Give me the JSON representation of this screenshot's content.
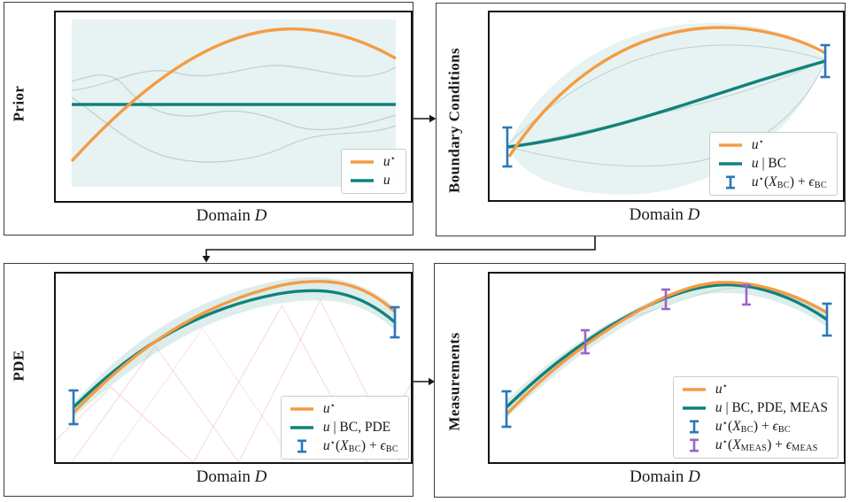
{
  "colors": {
    "u_star": "#F49C42",
    "posterior_mean": "#10827B",
    "uncertainty_band": "rgba(16,130,123,0.13)",
    "bc_errorbar": "#2B77B7",
    "meas_errorbar": "#9966C7",
    "fem_basis": "rgba(238,140,140,0.28)",
    "panel_border": "#3c3c3c",
    "plot_border": "#141414"
  },
  "flow_arrows": [
    {
      "from": "Prior",
      "to": "Boundary Conditions"
    },
    {
      "from": "Boundary Conditions",
      "to": "PDE"
    },
    {
      "from": "PDE",
      "to": "Measurements"
    }
  ],
  "panels": [
    {
      "id": "prior",
      "side_label": "Prior",
      "xlabel": [
        {
          "t": "Domain ",
          "rm": true
        },
        {
          "t": "D",
          "it": true
        }
      ],
      "legend": [
        {
          "marker": "line",
          "color": "#F49C42",
          "label": [
            {
              "t": "u",
              "it": true
            },
            {
              "t": "⋆",
              "sup": true
            }
          ]
        },
        {
          "marker": "line",
          "color": "#10827B",
          "label": [
            {
              "t": "u",
              "it": true
            }
          ]
        }
      ]
    },
    {
      "id": "boundary-conditions",
      "side_label": "Boundary Conditions",
      "xlabel": [
        {
          "t": "Domain ",
          "rm": true
        },
        {
          "t": "D",
          "it": true
        }
      ],
      "legend": [
        {
          "marker": "line",
          "color": "#F49C42",
          "label": [
            {
              "t": "u",
              "it": true
            },
            {
              "t": "⋆",
              "sup": true
            }
          ]
        },
        {
          "marker": "line",
          "color": "#10827B",
          "label": [
            {
              "t": "u",
              "it": true
            },
            {
              "t": " | BC",
              "rm": true
            }
          ]
        },
        {
          "marker": "errorbar",
          "color": "#2B77B7",
          "label": [
            {
              "t": "u",
              "it": true
            },
            {
              "t": "⋆",
              "sup": true
            },
            {
              "t": "(",
              "rm": true
            },
            {
              "t": "X",
              "it": true
            },
            {
              "t": "BC",
              "sub": true
            },
            {
              "t": ")",
              "rm": true
            },
            {
              "t": " + ",
              "rm": true
            },
            {
              "t": "ϵ",
              "it": true
            },
            {
              "t": "BC",
              "sub": true
            }
          ]
        }
      ]
    },
    {
      "id": "pde",
      "side_label": "PDE",
      "xlabel": [
        {
          "t": "Domain ",
          "rm": true
        },
        {
          "t": "D",
          "it": true
        }
      ],
      "legend": [
        {
          "marker": "line",
          "color": "#F49C42",
          "label": [
            {
              "t": "u",
              "it": true
            },
            {
              "t": "⋆",
              "sup": true
            }
          ]
        },
        {
          "marker": "line",
          "color": "#10827B",
          "label": [
            {
              "t": "u",
              "it": true
            },
            {
              "t": " | BC, PDE",
              "rm": true
            }
          ]
        },
        {
          "marker": "errorbar",
          "color": "#2B77B7",
          "label": [
            {
              "t": "u",
              "it": true
            },
            {
              "t": "⋆",
              "sup": true
            },
            {
              "t": "(",
              "rm": true
            },
            {
              "t": "X",
              "it": true
            },
            {
              "t": "BC",
              "sub": true
            },
            {
              "t": ")",
              "rm": true
            },
            {
              "t": " + ",
              "rm": true
            },
            {
              "t": "ϵ",
              "it": true
            },
            {
              "t": "BC",
              "sub": true
            }
          ]
        }
      ]
    },
    {
      "id": "measurements",
      "side_label": "Measurements",
      "xlabel": [
        {
          "t": "Domain ",
          "rm": true
        },
        {
          "t": "D",
          "it": true
        }
      ],
      "legend": [
        {
          "marker": "line",
          "color": "#F49C42",
          "label": [
            {
              "t": "u",
              "it": true
            },
            {
              "t": "⋆",
              "sup": true
            }
          ]
        },
        {
          "marker": "line",
          "color": "#10827B",
          "label": [
            {
              "t": "u",
              "it": true
            },
            {
              "t": " | BC, PDE, MEAS",
              "rm": true
            }
          ]
        },
        {
          "marker": "errorbar",
          "color": "#2B77B7",
          "label": [
            {
              "t": "u",
              "it": true
            },
            {
              "t": "⋆",
              "sup": true
            },
            {
              "t": "(",
              "rm": true
            },
            {
              "t": "X",
              "it": true
            },
            {
              "t": "BC",
              "sub": true
            },
            {
              "t": ")",
              "rm": true
            },
            {
              "t": " + ",
              "rm": true
            },
            {
              "t": "ϵ",
              "it": true
            },
            {
              "t": "BC",
              "sub": true
            }
          ]
        },
        {
          "marker": "errorbar",
          "color": "#9966C7",
          "label": [
            {
              "t": "u",
              "it": true
            },
            {
              "t": "⋆",
              "sup": true
            },
            {
              "t": "(",
              "rm": true
            },
            {
              "t": "X",
              "it": true
            },
            {
              "t": "MEAS",
              "sub": true
            },
            {
              "t": ")",
              "rm": true
            },
            {
              "t": " + ",
              "rm": true
            },
            {
              "t": "ϵ",
              "it": true
            },
            {
              "t": "MEAS",
              "sub": true
            }
          ]
        }
      ]
    }
  ],
  "chart_data": [
    {
      "type": "line",
      "title": "Prior",
      "xlabel": "Domain D",
      "ylabel": "",
      "axis_ticks": false,
      "grid": false,
      "legend_position": "lower right",
      "x": [
        0,
        0.125,
        0.25,
        0.375,
        0.5,
        0.625,
        0.75,
        0.875,
        1
      ],
      "series": [
        {
          "name": "u⋆",
          "color": "#F49C42",
          "values": [
            0.18,
            0.37,
            0.55,
            0.72,
            0.85,
            0.93,
            0.95,
            0.91,
            0.8
          ]
        },
        {
          "name": "u",
          "color": "#10827B",
          "values": [
            0.5,
            0.5,
            0.5,
            0.5,
            0.5,
            0.5,
            0.5,
            0.5,
            0.5
          ]
        }
      ],
      "band": {
        "label": "prior uncertainty",
        "lower": 0.06,
        "upper": 0.95,
        "style": "uniform rectangle"
      },
      "sample_paths": 3
    },
    {
      "type": "line",
      "title": "Boundary Conditions",
      "xlabel": "Domain D",
      "ylabel": "",
      "axis_ticks": false,
      "grid": false,
      "legend_position": "lower right",
      "x": [
        0,
        0.125,
        0.25,
        0.375,
        0.5,
        0.625,
        0.75,
        0.875,
        1
      ],
      "series": [
        {
          "name": "u⋆",
          "color": "#F49C42",
          "values": [
            0.22,
            0.44,
            0.64,
            0.79,
            0.89,
            0.93,
            0.92,
            0.87,
            0.79
          ]
        },
        {
          "name": "u | BC",
          "color": "#10827B",
          "values": [
            0.28,
            0.33,
            0.39,
            0.46,
            0.53,
            0.6,
            0.66,
            0.71,
            0.74
          ]
        }
      ],
      "errorbars": [
        {
          "name": "u⋆(X_BC) + ϵ_BC",
          "color": "#2B77B7",
          "points": [
            {
              "x": 0,
              "y": 0.28,
              "err": 0.1
            },
            {
              "x": 1,
              "y": 0.74,
              "err": 0.09
            }
          ]
        }
      ],
      "band": {
        "label": "posterior uncertainty",
        "style": "lens shape pinched at both boundary points"
      },
      "sample_paths": 3
    },
    {
      "type": "line",
      "title": "PDE",
      "xlabel": "Domain D",
      "ylabel": "",
      "axis_ticks": false,
      "grid": false,
      "legend_position": "lower right",
      "x": [
        0,
        0.125,
        0.25,
        0.375,
        0.5,
        0.625,
        0.75,
        0.875,
        1
      ],
      "series": [
        {
          "name": "u⋆",
          "color": "#F49C42",
          "values": [
            0.26,
            0.43,
            0.61,
            0.77,
            0.89,
            0.94,
            0.95,
            0.91,
            0.8
          ]
        },
        {
          "name": "u | BC, PDE",
          "color": "#10827B",
          "values": [
            0.29,
            0.45,
            0.61,
            0.75,
            0.86,
            0.9,
            0.9,
            0.85,
            0.74
          ]
        }
      ],
      "errorbars": [
        {
          "name": "u⋆(X_BC) + ϵ_BC",
          "color": "#2B77B7",
          "points": [
            {
              "x": 0,
              "y": 0.29,
              "err": 0.09
            },
            {
              "x": 1,
              "y": 0.74,
              "err": 0.08
            }
          ]
        }
      ],
      "band": {
        "label": "posterior uncertainty",
        "style": "narrow band following mean"
      },
      "annotations": "faint light-red triangular finite-element basis functions across the domain"
    },
    {
      "type": "line",
      "title": "Measurements",
      "xlabel": "Domain D",
      "ylabel": "",
      "axis_ticks": false,
      "grid": false,
      "legend_position": "lower right",
      "x": [
        0,
        0.125,
        0.25,
        0.375,
        0.5,
        0.625,
        0.75,
        0.875,
        1
      ],
      "series": [
        {
          "name": "u⋆",
          "color": "#F49C42",
          "values": [
            0.25,
            0.41,
            0.59,
            0.75,
            0.88,
            0.94,
            0.94,
            0.9,
            0.79
          ]
        },
        {
          "name": "u | BC, PDE, MEAS",
          "color": "#10827B",
          "values": [
            0.28,
            0.43,
            0.6,
            0.75,
            0.87,
            0.92,
            0.92,
            0.88,
            0.77
          ]
        }
      ],
      "errorbars": [
        {
          "name": "u⋆(X_BC) + ϵ_BC",
          "color": "#2B77B7",
          "points": [
            {
              "x": 0,
              "y": 0.28,
              "err": 0.1
            },
            {
              "x": 1,
              "y": 0.76,
              "err": 0.09
            }
          ]
        },
        {
          "name": "u⋆(X_MEAS) + ϵ_MEAS",
          "color": "#9966C7",
          "points": [
            {
              "x": 0.25,
              "y": 0.64,
              "err": 0.06
            },
            {
              "x": 0.5,
              "y": 0.86,
              "err": 0.05
            },
            {
              "x": 0.72,
              "y": 0.89,
              "err": 0.05
            }
          ]
        }
      ],
      "band": {
        "label": "posterior uncertainty",
        "style": "narrow band pinched at observation points"
      }
    }
  ]
}
